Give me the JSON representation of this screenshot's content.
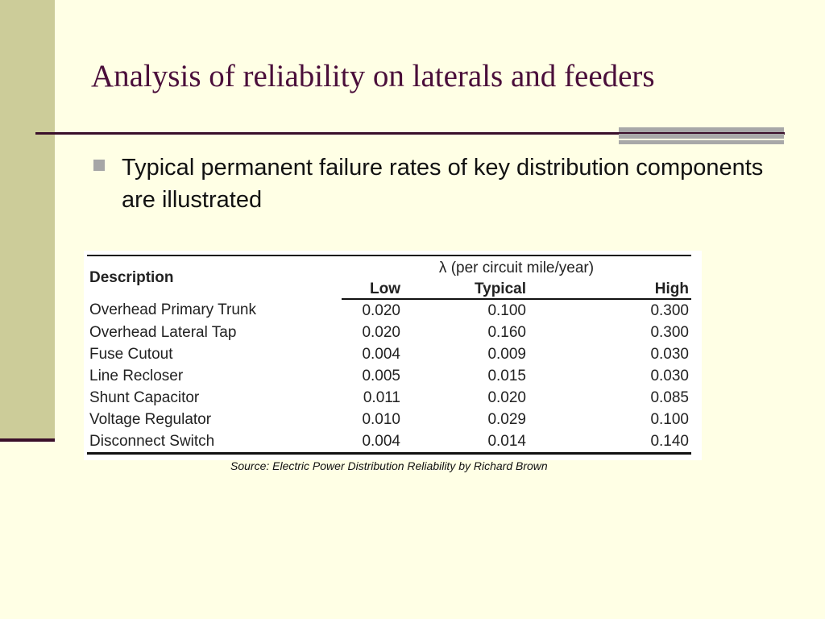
{
  "slide": {
    "title": "Analysis of reliability on laterals and feeders",
    "bullet": "Typical permanent failure rates of key distribution components are illustrated"
  },
  "table": {
    "desc_header": "Description",
    "group_header": "λ (per circuit mile/year)",
    "columns": {
      "low": "Low",
      "typical": "Typical",
      "high": "High"
    },
    "rows": [
      {
        "desc": "Overhead Primary Trunk",
        "low": "0.020",
        "typical": "0.100",
        "high": "0.300"
      },
      {
        "desc": "Overhead Lateral Tap",
        "low": "0.020",
        "typical": "0.160",
        "high": "0.300"
      },
      {
        "desc": "Fuse Cutout",
        "low": "0.004",
        "typical": "0.009",
        "high": "0.030"
      },
      {
        "desc": "Line Recloser",
        "low": "0.005",
        "typical": "0.015",
        "high": "0.030"
      },
      {
        "desc": "Shunt Capacitor",
        "low": "0.011",
        "typical": "0.020",
        "high": "0.085"
      },
      {
        "desc": "Voltage Regulator",
        "low": "0.010",
        "typical": "0.029",
        "high": "0.100"
      },
      {
        "desc": "Disconnect Switch",
        "low": "0.004",
        "typical": "0.014",
        "high": "0.140"
      }
    ],
    "source": "Source: Electric Power Distribution Reliability by Richard Brown"
  },
  "theme": {
    "background": "#ffffe5",
    "side_band": "#cccc99",
    "title_color": "#4a0e3a",
    "rule_color": "#3a0f2a"
  }
}
